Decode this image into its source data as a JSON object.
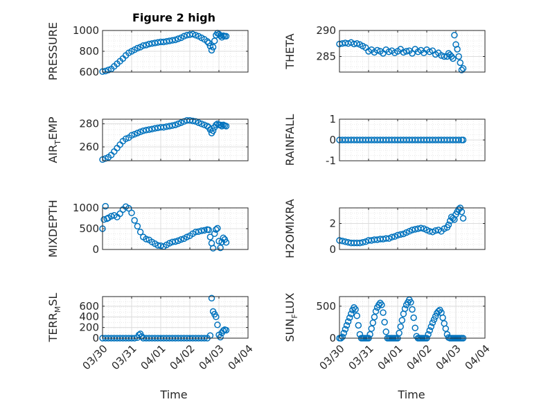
{
  "figure": {
    "title": "Figure 2 high",
    "xlabel": "Time",
    "marker_color": "#0072BD"
  },
  "x_ticks": [
    "03/30",
    "03/31",
    "04/01",
    "04/02",
    "04/03",
    "04/04"
  ],
  "chart_data": [
    {
      "type": "scatter",
      "name": "PRESSURE",
      "ylabel": "PRESSURE",
      "xlim": [
        0,
        5
      ],
      "ylim": [
        600,
        1000
      ],
      "yticks": [
        600,
        800,
        1000
      ],
      "x": [
        0.0,
        0.1,
        0.2,
        0.3,
        0.4,
        0.5,
        0.6,
        0.7,
        0.8,
        0.9,
        1.0,
        1.1,
        1.2,
        1.3,
        1.4,
        1.5,
        1.6,
        1.7,
        1.8,
        1.9,
        2.0,
        2.1,
        2.2,
        2.3,
        2.4,
        2.5,
        2.6,
        2.7,
        2.8,
        2.9,
        3.0,
        3.1,
        3.2,
        3.3,
        3.4,
        3.5,
        3.6,
        3.65,
        3.7,
        3.75,
        3.8,
        3.85,
        3.9,
        3.95,
        4.0,
        4.05,
        4.1,
        4.15,
        4.2,
        4.25
      ],
      "y": [
        605,
        610,
        620,
        630,
        655,
        680,
        705,
        730,
        760,
        785,
        800,
        815,
        830,
        840,
        855,
        860,
        870,
        875,
        880,
        885,
        890,
        890,
        895,
        900,
        905,
        910,
        920,
        930,
        945,
        955,
        960,
        965,
        955,
        945,
        930,
        915,
        895,
        880,
        850,
        810,
        840,
        900,
        955,
        975,
        965,
        950,
        935,
        950,
        945,
        945
      ]
    },
    {
      "type": "scatter",
      "name": "THETA",
      "ylabel": "THETA",
      "xlim": [
        0,
        5
      ],
      "ylim": [
        282,
        290
      ],
      "yticks": [
        285,
        290
      ],
      "x": [
        0.0,
        0.1,
        0.2,
        0.3,
        0.4,
        0.5,
        0.6,
        0.7,
        0.8,
        0.9,
        1.0,
        1.1,
        1.2,
        1.3,
        1.4,
        1.5,
        1.6,
        1.7,
        1.8,
        1.9,
        2.0,
        2.1,
        2.2,
        2.3,
        2.4,
        2.5,
        2.6,
        2.7,
        2.8,
        2.9,
        3.0,
        3.1,
        3.2,
        3.3,
        3.4,
        3.5,
        3.6,
        3.7,
        3.75,
        3.8,
        3.85,
        3.9,
        3.95,
        4.0,
        4.05,
        4.1,
        4.15,
        4.2,
        4.25
      ],
      "y": [
        287.4,
        287.5,
        287.6,
        287.5,
        287.7,
        287.4,
        287.5,
        287.3,
        287.0,
        286.7,
        286.0,
        286.3,
        285.8,
        286.2,
        286.0,
        285.6,
        286.3,
        285.9,
        286.1,
        285.7,
        286.0,
        286.4,
        285.8,
        286.0,
        286.1,
        285.6,
        286.4,
        285.9,
        286.2,
        285.7,
        286.3,
        285.9,
        286.1,
        285.4,
        285.7,
        285.2,
        285.0,
        285.0,
        285.6,
        285.3,
        285.0,
        284.6,
        289.1,
        287.3,
        286.4,
        285.0,
        283.8,
        282.4,
        282.7
      ]
    },
    {
      "type": "scatter",
      "name": "AIR_TEMP",
      "ylabel": "AIR_TEMP",
      "xlim": [
        0,
        5
      ],
      "ylim": [
        248,
        284
      ],
      "yticks": [
        260,
        280
      ],
      "x": [
        0.0,
        0.1,
        0.2,
        0.3,
        0.4,
        0.5,
        0.6,
        0.7,
        0.8,
        0.9,
        1.0,
        1.1,
        1.2,
        1.3,
        1.4,
        1.5,
        1.6,
        1.7,
        1.8,
        1.9,
        2.0,
        2.1,
        2.2,
        2.3,
        2.4,
        2.5,
        2.6,
        2.7,
        2.8,
        2.9,
        3.0,
        3.1,
        3.2,
        3.3,
        3.4,
        3.5,
        3.6,
        3.65,
        3.7,
        3.75,
        3.8,
        3.85,
        3.9,
        3.95,
        4.0,
        4.05,
        4.1,
        4.15,
        4.2,
        4.25
      ],
      "y": [
        249,
        250,
        251,
        253,
        256,
        259,
        262,
        265,
        267,
        268,
        270,
        271,
        272,
        273,
        274,
        274.5,
        275,
        275.5,
        276,
        276.5,
        277,
        277,
        277.5,
        278,
        278.5,
        279,
        280,
        281,
        282,
        283,
        283,
        282.5,
        282,
        281,
        280,
        279,
        278,
        277,
        275,
        272,
        274,
        277,
        279,
        280,
        279,
        279,
        278,
        279,
        278.5,
        278
      ]
    },
    {
      "type": "scatter",
      "name": "RAINFALL",
      "ylabel": "RAINFALL",
      "xlim": [
        0,
        5
      ],
      "ylim": [
        -1,
        1
      ],
      "yticks": [
        -1,
        0,
        1
      ],
      "x": [
        0.0,
        0.1,
        0.2,
        0.3,
        0.4,
        0.5,
        0.6,
        0.7,
        0.8,
        0.9,
        1.0,
        1.1,
        1.2,
        1.3,
        1.4,
        1.5,
        1.6,
        1.7,
        1.8,
        1.9,
        2.0,
        2.1,
        2.2,
        2.3,
        2.4,
        2.5,
        2.6,
        2.7,
        2.8,
        2.9,
        3.0,
        3.1,
        3.2,
        3.3,
        3.4,
        3.5,
        3.6,
        3.7,
        3.8,
        3.9,
        4.0,
        4.1,
        4.2,
        4.25
      ],
      "y": [
        0,
        0,
        0,
        0,
        0,
        0,
        0,
        0,
        0,
        0,
        0,
        0,
        0,
        0,
        0,
        0,
        0,
        0,
        0,
        0,
        0,
        0,
        0,
        0,
        0,
        0,
        0,
        0,
        0,
        0,
        0,
        0,
        0,
        0,
        0,
        0,
        0,
        0,
        0,
        0,
        0,
        0,
        0,
        0
      ]
    },
    {
      "type": "scatter",
      "name": "MIXDEPTH",
      "ylabel": "MIXDEPTH",
      "xlim": [
        0,
        5
      ],
      "ylim": [
        0,
        1000
      ],
      "yticks": [
        0,
        500,
        1000
      ],
      "x": [
        0.0,
        0.05,
        0.1,
        0.15,
        0.2,
        0.3,
        0.4,
        0.5,
        0.6,
        0.7,
        0.8,
        0.9,
        1.0,
        1.1,
        1.2,
        1.3,
        1.4,
        1.5,
        1.6,
        1.7,
        1.8,
        1.9,
        2.0,
        2.1,
        2.2,
        2.3,
        2.4,
        2.5,
        2.6,
        2.7,
        2.8,
        2.9,
        3.0,
        3.1,
        3.2,
        3.3,
        3.4,
        3.5,
        3.6,
        3.65,
        3.7,
        3.75,
        3.8,
        3.85,
        3.9,
        3.95,
        4.0,
        4.05,
        4.1,
        4.15,
        4.2,
        4.25
      ],
      "y": [
        500,
        720,
        1040,
        740,
        760,
        800,
        820,
        780,
        860,
        960,
        1030,
        990,
        880,
        700,
        560,
        420,
        300,
        250,
        230,
        180,
        140,
        100,
        90,
        70,
        110,
        150,
        180,
        190,
        210,
        240,
        260,
        300,
        330,
        380,
        420,
        430,
        450,
        460,
        480,
        470,
        300,
        150,
        30,
        380,
        480,
        510,
        200,
        40,
        180,
        280,
        240,
        170
      ]
    },
    {
      "type": "scatter",
      "name": "H2OMIXRA",
      "ylabel": "H2OMIXRA",
      "xlim": [
        0,
        5
      ],
      "ylim": [
        0,
        3.2
      ],
      "yticks": [
        0,
        2
      ],
      "x": [
        0.0,
        0.1,
        0.2,
        0.3,
        0.4,
        0.5,
        0.6,
        0.7,
        0.8,
        0.9,
        1.0,
        1.1,
        1.2,
        1.3,
        1.4,
        1.5,
        1.6,
        1.7,
        1.8,
        1.9,
        2.0,
        2.1,
        2.2,
        2.3,
        2.4,
        2.5,
        2.6,
        2.7,
        2.8,
        2.9,
        3.0,
        3.1,
        3.2,
        3.3,
        3.4,
        3.5,
        3.6,
        3.7,
        3.75,
        3.8,
        3.85,
        3.9,
        3.95,
        4.0,
        4.05,
        4.1,
        4.15,
        4.2,
        4.25
      ],
      "y": [
        0.7,
        0.65,
        0.6,
        0.55,
        0.5,
        0.5,
        0.5,
        0.5,
        0.55,
        0.6,
        0.7,
        0.7,
        0.75,
        0.75,
        0.8,
        0.8,
        0.85,
        0.85,
        0.95,
        1.0,
        1.1,
        1.15,
        1.2,
        1.3,
        1.4,
        1.5,
        1.55,
        1.6,
        1.65,
        1.6,
        1.5,
        1.4,
        1.35,
        1.45,
        1.5,
        1.4,
        1.6,
        1.7,
        1.9,
        2.2,
        2.5,
        2.4,
        2.3,
        2.7,
        2.9,
        3.1,
        3.2,
        2.9,
        2.4
      ]
    },
    {
      "type": "scatter",
      "name": "TERR_MSL",
      "ylabel": "TERR_MSL",
      "xlim": [
        0,
        5
      ],
      "ylim": [
        0,
        780
      ],
      "yticks": [
        0,
        200,
        400,
        600
      ],
      "x": [
        0.0,
        0.1,
        0.2,
        0.3,
        0.4,
        0.5,
        0.6,
        0.7,
        0.8,
        0.9,
        1.0,
        1.1,
        1.2,
        1.25,
        1.3,
        1.35,
        1.4,
        1.5,
        1.6,
        1.7,
        1.8,
        1.9,
        2.0,
        2.1,
        2.2,
        2.3,
        2.4,
        2.5,
        2.6,
        2.7,
        2.8,
        2.9,
        3.0,
        3.1,
        3.2,
        3.3,
        3.4,
        3.5,
        3.6,
        3.7,
        3.75,
        3.8,
        3.85,
        3.9,
        3.95,
        4.0,
        4.05,
        4.1,
        4.15,
        4.2,
        4.25
      ],
      "y": [
        0,
        0,
        0,
        0,
        0,
        0,
        0,
        0,
        0,
        0,
        0,
        0,
        10,
        60,
        80,
        30,
        0,
        0,
        0,
        0,
        0,
        0,
        0,
        0,
        0,
        0,
        0,
        0,
        0,
        0,
        0,
        0,
        0,
        0,
        0,
        0,
        0,
        0,
        0,
        50,
        750,
        500,
        450,
        400,
        250,
        60,
        20,
        100,
        140,
        160,
        150
      ]
    },
    {
      "type": "scatter",
      "name": "SUN_FLUX",
      "ylabel": "SUN_FLUX",
      "xlim": [
        0,
        5
      ],
      "ylim": [
        0,
        650
      ],
      "yticks": [
        0,
        500
      ],
      "x": [
        0.0,
        0.05,
        0.1,
        0.15,
        0.2,
        0.25,
        0.3,
        0.35,
        0.4,
        0.45,
        0.5,
        0.55,
        0.6,
        0.65,
        0.7,
        0.75,
        0.8,
        0.85,
        0.9,
        0.95,
        1.0,
        1.05,
        1.1,
        1.15,
        1.2,
        1.25,
        1.3,
        1.35,
        1.4,
        1.45,
        1.5,
        1.55,
        1.6,
        1.65,
        1.7,
        1.75,
        1.8,
        1.85,
        1.9,
        1.95,
        2.0,
        2.05,
        2.1,
        2.15,
        2.2,
        2.25,
        2.3,
        2.35,
        2.4,
        2.45,
        2.5,
        2.55,
        2.6,
        2.65,
        2.7,
        2.75,
        2.8,
        2.85,
        2.9,
        2.95,
        3.0,
        3.05,
        3.1,
        3.15,
        3.2,
        3.25,
        3.3,
        3.35,
        3.4,
        3.45,
        3.5,
        3.55,
        3.6,
        3.65,
        3.7,
        3.75,
        3.8,
        3.85,
        3.9,
        3.95,
        4.0,
        4.05,
        4.1,
        4.15,
        4.2,
        4.25
      ],
      "y": [
        0,
        0,
        20,
        80,
        140,
        200,
        260,
        320,
        380,
        440,
        480,
        450,
        350,
        200,
        60,
        0,
        0,
        0,
        0,
        0,
        0,
        60,
        150,
        240,
        330,
        420,
        480,
        520,
        550,
        520,
        400,
        250,
        100,
        0,
        0,
        0,
        0,
        0,
        0,
        0,
        0,
        80,
        180,
        280,
        380,
        460,
        520,
        560,
        600,
        560,
        450,
        320,
        160,
        30,
        0,
        0,
        0,
        0,
        0,
        0,
        0,
        60,
        120,
        180,
        240,
        290,
        340,
        390,
        420,
        440,
        400,
        320,
        230,
        150,
        60,
        10,
        0,
        0,
        0,
        0,
        0,
        0,
        0,
        0,
        0,
        0
      ]
    }
  ]
}
